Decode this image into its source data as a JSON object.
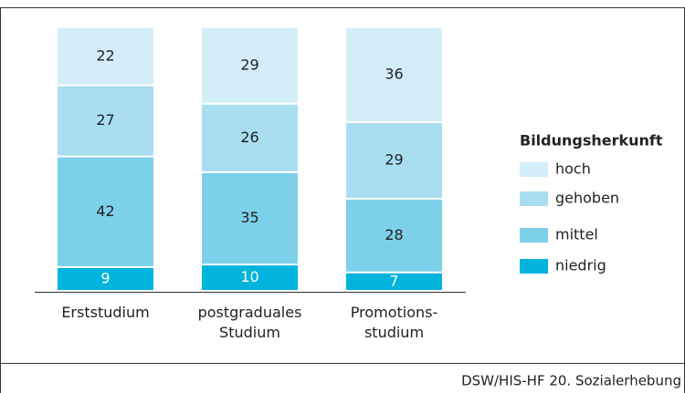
{
  "chart_data": {
    "type": "stacked_bar",
    "categories": [
      "Erststudium",
      "postgraduales\nStudium",
      "Promotions-\nstudium"
    ],
    "series": [
      {
        "name": "niedrig",
        "color": "#00b4dd",
        "values": [
          9,
          10,
          7
        ]
      },
      {
        "name": "mittel",
        "color": "#7dd0ea",
        "values": [
          42,
          35,
          28
        ]
      },
      {
        "name": "gehoben",
        "color": "#a8def0",
        "values": [
          27,
          26,
          29
        ]
      },
      {
        "name": "hoch",
        "color": "#d3eef8",
        "values": [
          22,
          29,
          36
        ]
      }
    ],
    "legend_title": "Bildungsherkunft",
    "source": "DSW/HIS-HF 20. Sozialerhebung"
  }
}
